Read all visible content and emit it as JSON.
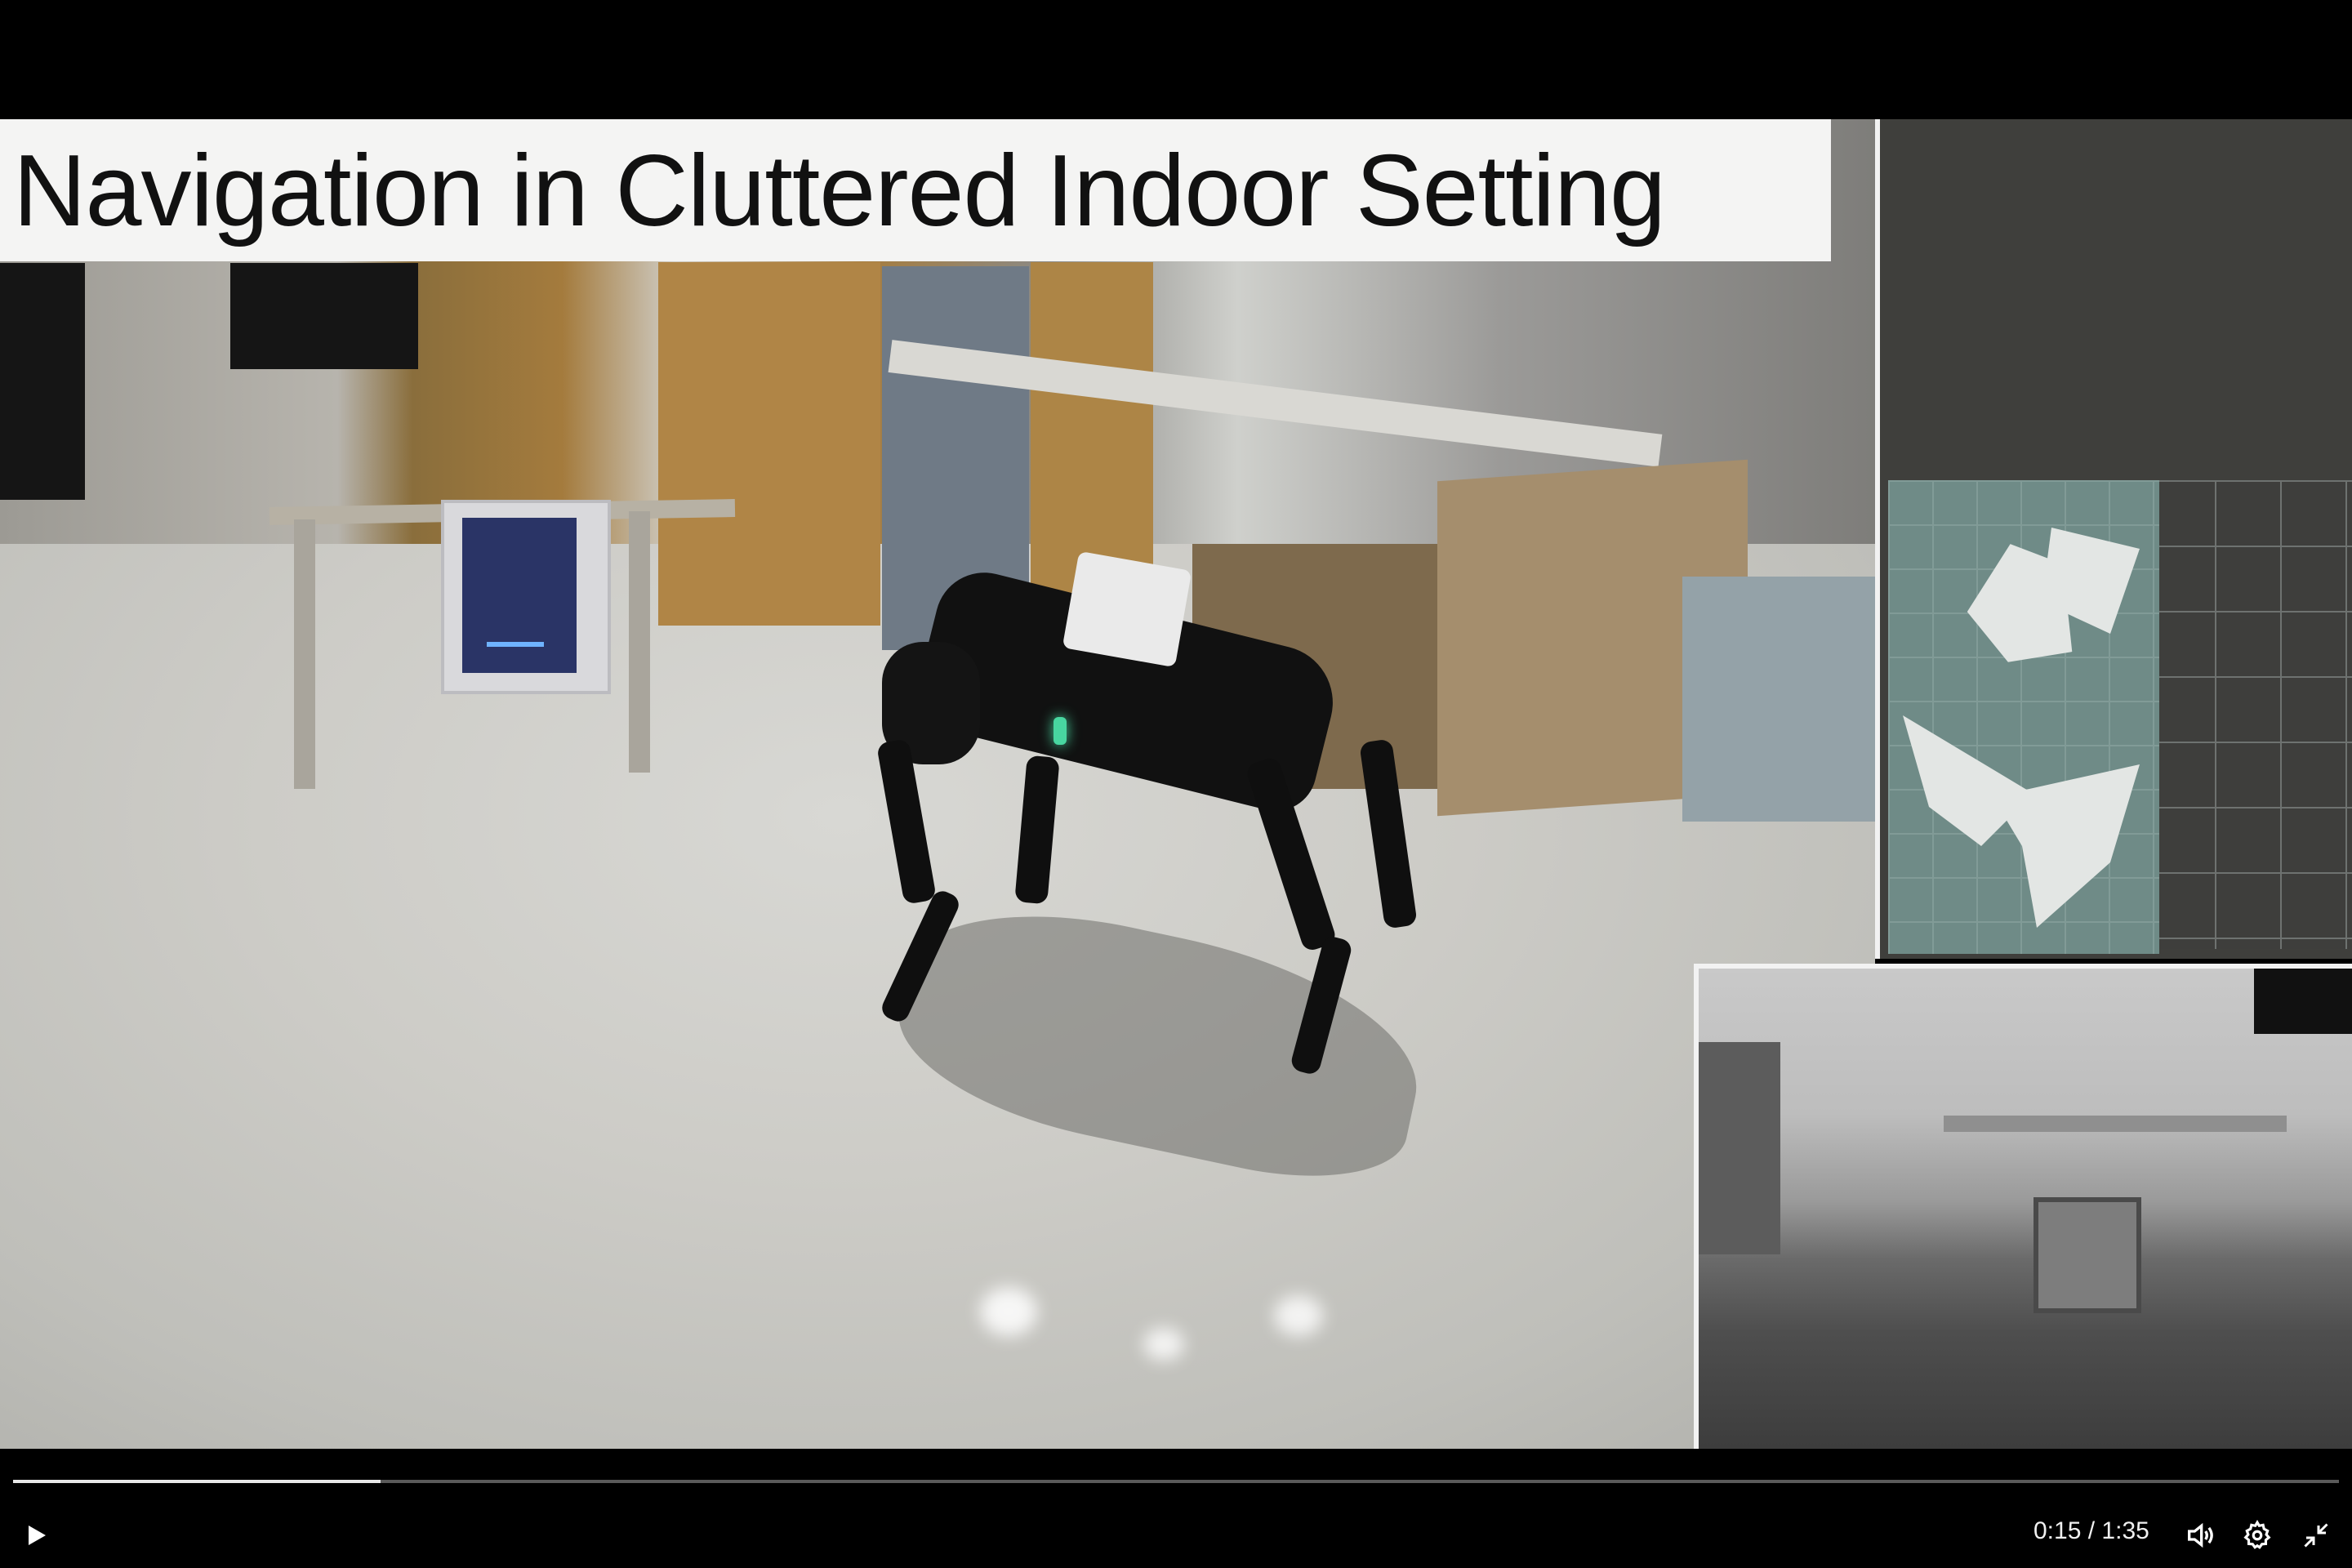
{
  "video": {
    "title_overlay": "Navigation in Cluttered Indoor Setting",
    "current_time": "0:15",
    "separator": "/",
    "duration": "1:35",
    "progress_fraction": 0.158
  },
  "controls": {
    "play_icon": "play-icon",
    "volume_icon": "volume-icon",
    "settings_icon": "gear-icon",
    "exit_fullscreen_icon": "exit-fullscreen-icon"
  },
  "colors": {
    "progress_fill": "#e8e8e8",
    "progress_track": "#5a5a5a",
    "background": "#000000"
  }
}
